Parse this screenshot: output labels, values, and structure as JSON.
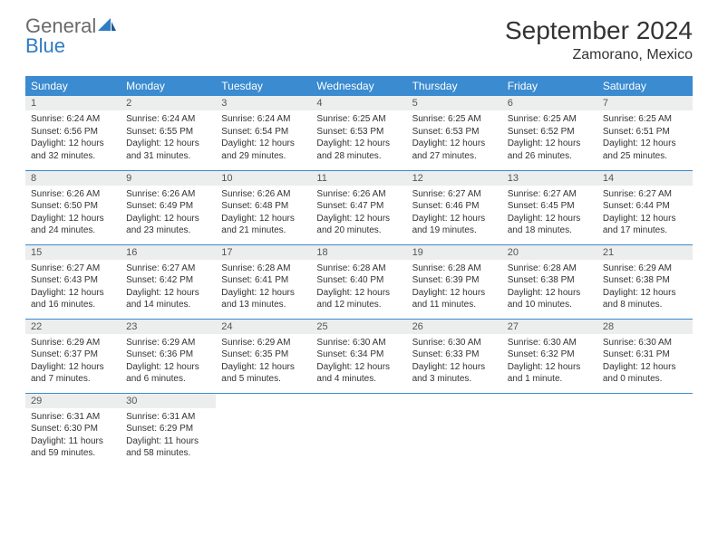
{
  "brand": {
    "general": "General",
    "blue": "Blue"
  },
  "title": "September 2024",
  "location": "Zamorano, Mexico",
  "colors": {
    "header_bg": "#3a8bd0",
    "header_text": "#ffffff",
    "daynum_bg": "#eceded",
    "border": "#3a8bd0",
    "text": "#333333"
  },
  "weekdays": [
    "Sunday",
    "Monday",
    "Tuesday",
    "Wednesday",
    "Thursday",
    "Friday",
    "Saturday"
  ],
  "days": [
    {
      "n": "1",
      "sunrise": "Sunrise: 6:24 AM",
      "sunset": "Sunset: 6:56 PM",
      "day1": "Daylight: 12 hours",
      "day2": "and 32 minutes."
    },
    {
      "n": "2",
      "sunrise": "Sunrise: 6:24 AM",
      "sunset": "Sunset: 6:55 PM",
      "day1": "Daylight: 12 hours",
      "day2": "and 31 minutes."
    },
    {
      "n": "3",
      "sunrise": "Sunrise: 6:24 AM",
      "sunset": "Sunset: 6:54 PM",
      "day1": "Daylight: 12 hours",
      "day2": "and 29 minutes."
    },
    {
      "n": "4",
      "sunrise": "Sunrise: 6:25 AM",
      "sunset": "Sunset: 6:53 PM",
      "day1": "Daylight: 12 hours",
      "day2": "and 28 minutes."
    },
    {
      "n": "5",
      "sunrise": "Sunrise: 6:25 AM",
      "sunset": "Sunset: 6:53 PM",
      "day1": "Daylight: 12 hours",
      "day2": "and 27 minutes."
    },
    {
      "n": "6",
      "sunrise": "Sunrise: 6:25 AM",
      "sunset": "Sunset: 6:52 PM",
      "day1": "Daylight: 12 hours",
      "day2": "and 26 minutes."
    },
    {
      "n": "7",
      "sunrise": "Sunrise: 6:25 AM",
      "sunset": "Sunset: 6:51 PM",
      "day1": "Daylight: 12 hours",
      "day2": "and 25 minutes."
    },
    {
      "n": "8",
      "sunrise": "Sunrise: 6:26 AM",
      "sunset": "Sunset: 6:50 PM",
      "day1": "Daylight: 12 hours",
      "day2": "and 24 minutes."
    },
    {
      "n": "9",
      "sunrise": "Sunrise: 6:26 AM",
      "sunset": "Sunset: 6:49 PM",
      "day1": "Daylight: 12 hours",
      "day2": "and 23 minutes."
    },
    {
      "n": "10",
      "sunrise": "Sunrise: 6:26 AM",
      "sunset": "Sunset: 6:48 PM",
      "day1": "Daylight: 12 hours",
      "day2": "and 21 minutes."
    },
    {
      "n": "11",
      "sunrise": "Sunrise: 6:26 AM",
      "sunset": "Sunset: 6:47 PM",
      "day1": "Daylight: 12 hours",
      "day2": "and 20 minutes."
    },
    {
      "n": "12",
      "sunrise": "Sunrise: 6:27 AM",
      "sunset": "Sunset: 6:46 PM",
      "day1": "Daylight: 12 hours",
      "day2": "and 19 minutes."
    },
    {
      "n": "13",
      "sunrise": "Sunrise: 6:27 AM",
      "sunset": "Sunset: 6:45 PM",
      "day1": "Daylight: 12 hours",
      "day2": "and 18 minutes."
    },
    {
      "n": "14",
      "sunrise": "Sunrise: 6:27 AM",
      "sunset": "Sunset: 6:44 PM",
      "day1": "Daylight: 12 hours",
      "day2": "and 17 minutes."
    },
    {
      "n": "15",
      "sunrise": "Sunrise: 6:27 AM",
      "sunset": "Sunset: 6:43 PM",
      "day1": "Daylight: 12 hours",
      "day2": "and 16 minutes."
    },
    {
      "n": "16",
      "sunrise": "Sunrise: 6:27 AM",
      "sunset": "Sunset: 6:42 PM",
      "day1": "Daylight: 12 hours",
      "day2": "and 14 minutes."
    },
    {
      "n": "17",
      "sunrise": "Sunrise: 6:28 AM",
      "sunset": "Sunset: 6:41 PM",
      "day1": "Daylight: 12 hours",
      "day2": "and 13 minutes."
    },
    {
      "n": "18",
      "sunrise": "Sunrise: 6:28 AM",
      "sunset": "Sunset: 6:40 PM",
      "day1": "Daylight: 12 hours",
      "day2": "and 12 minutes."
    },
    {
      "n": "19",
      "sunrise": "Sunrise: 6:28 AM",
      "sunset": "Sunset: 6:39 PM",
      "day1": "Daylight: 12 hours",
      "day2": "and 11 minutes."
    },
    {
      "n": "20",
      "sunrise": "Sunrise: 6:28 AM",
      "sunset": "Sunset: 6:38 PM",
      "day1": "Daylight: 12 hours",
      "day2": "and 10 minutes."
    },
    {
      "n": "21",
      "sunrise": "Sunrise: 6:29 AM",
      "sunset": "Sunset: 6:38 PM",
      "day1": "Daylight: 12 hours",
      "day2": "and 8 minutes."
    },
    {
      "n": "22",
      "sunrise": "Sunrise: 6:29 AM",
      "sunset": "Sunset: 6:37 PM",
      "day1": "Daylight: 12 hours",
      "day2": "and 7 minutes."
    },
    {
      "n": "23",
      "sunrise": "Sunrise: 6:29 AM",
      "sunset": "Sunset: 6:36 PM",
      "day1": "Daylight: 12 hours",
      "day2": "and 6 minutes."
    },
    {
      "n": "24",
      "sunrise": "Sunrise: 6:29 AM",
      "sunset": "Sunset: 6:35 PM",
      "day1": "Daylight: 12 hours",
      "day2": "and 5 minutes."
    },
    {
      "n": "25",
      "sunrise": "Sunrise: 6:30 AM",
      "sunset": "Sunset: 6:34 PM",
      "day1": "Daylight: 12 hours",
      "day2": "and 4 minutes."
    },
    {
      "n": "26",
      "sunrise": "Sunrise: 6:30 AM",
      "sunset": "Sunset: 6:33 PM",
      "day1": "Daylight: 12 hours",
      "day2": "and 3 minutes."
    },
    {
      "n": "27",
      "sunrise": "Sunrise: 6:30 AM",
      "sunset": "Sunset: 6:32 PM",
      "day1": "Daylight: 12 hours",
      "day2": "and 1 minute."
    },
    {
      "n": "28",
      "sunrise": "Sunrise: 6:30 AM",
      "sunset": "Sunset: 6:31 PM",
      "day1": "Daylight: 12 hours",
      "day2": "and 0 minutes."
    },
    {
      "n": "29",
      "sunrise": "Sunrise: 6:31 AM",
      "sunset": "Sunset: 6:30 PM",
      "day1": "Daylight: 11 hours",
      "day2": "and 59 minutes."
    },
    {
      "n": "30",
      "sunrise": "Sunrise: 6:31 AM",
      "sunset": "Sunset: 6:29 PM",
      "day1": "Daylight: 11 hours",
      "day2": "and 58 minutes."
    }
  ]
}
